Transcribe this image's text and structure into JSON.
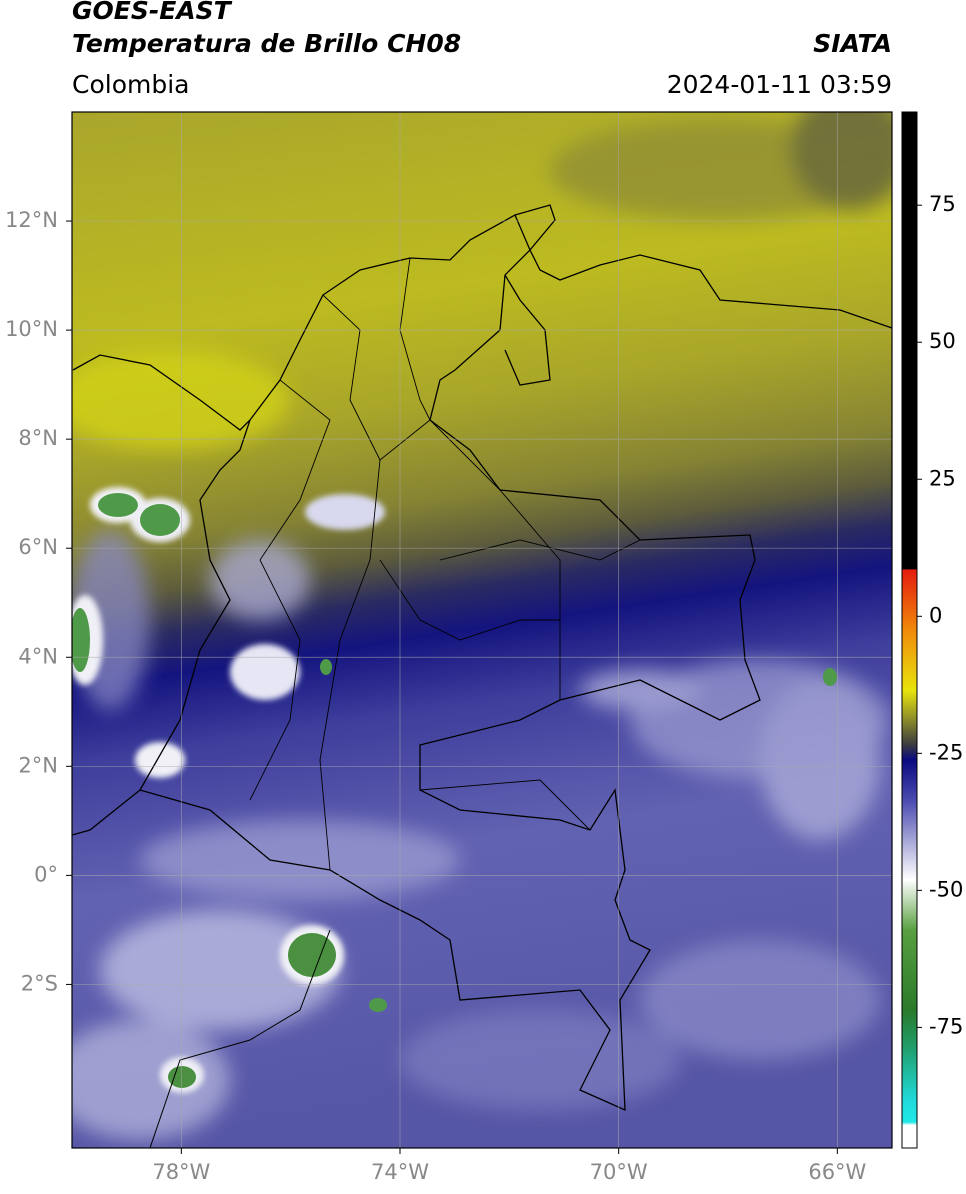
{
  "map": {
    "title": "GOES-EAST",
    "subtitle": "Temperatura de Brillo CH08",
    "source": "SIATA",
    "region": "Colombia",
    "datetime": "2024-01-11 03:59",
    "xlim": [
      -80,
      -65
    ],
    "ylim": [
      -5,
      14
    ],
    "xticks": [
      {
        "value": -78,
        "label": "78°W"
      },
      {
        "value": -74,
        "label": "74°W"
      },
      {
        "value": -70,
        "label": "70°W"
      },
      {
        "value": -66,
        "label": "66°W"
      }
    ],
    "yticks": [
      {
        "value": 12,
        "label": "12°N"
      },
      {
        "value": 10,
        "label": "10°N"
      },
      {
        "value": 8,
        "label": "8°N"
      },
      {
        "value": 6,
        "label": "6°N"
      },
      {
        "value": 4,
        "label": "4°N"
      },
      {
        "value": 2,
        "label": "2°N"
      },
      {
        "value": 0,
        "label": "0°"
      },
      {
        "value": -2,
        "label": "2°S"
      }
    ],
    "grid": true,
    "colorbar": {
      "lim": [
        -97,
        92
      ],
      "ticks": [
        75,
        50,
        25,
        0,
        -25,
        -50,
        -75
      ]
    }
  }
}
